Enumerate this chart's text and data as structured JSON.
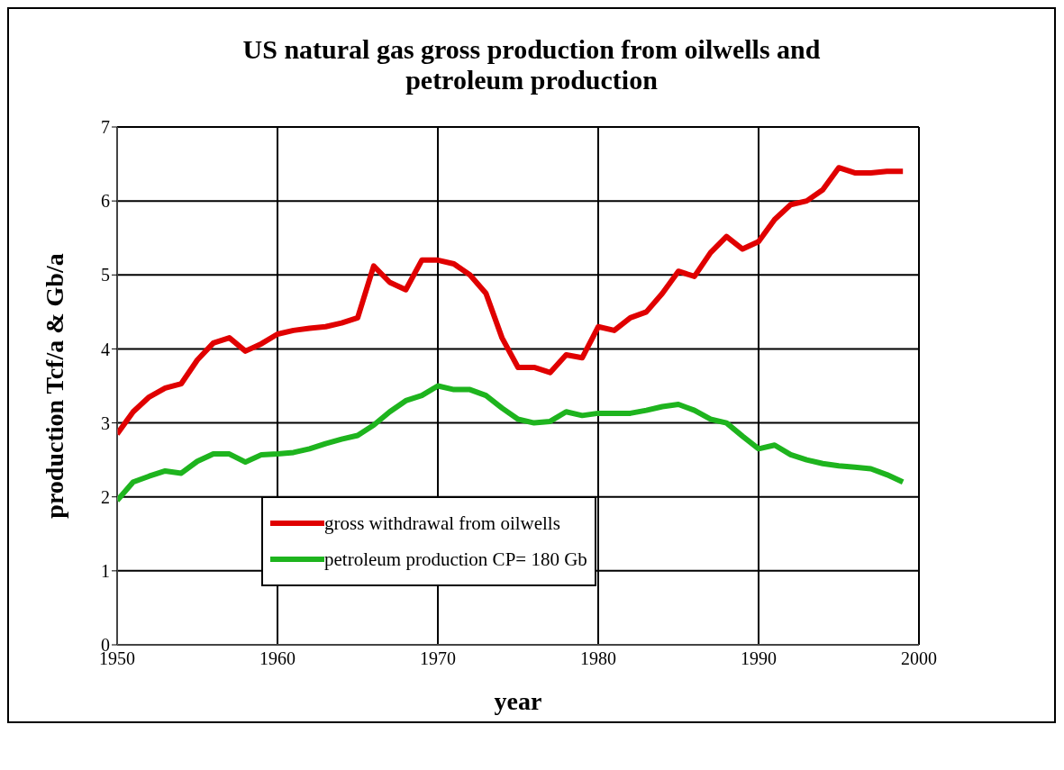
{
  "chart_data": {
    "type": "line",
    "title": "US natural gas gross production from oilwells and petroleum production",
    "xlabel": "year",
    "ylabel": "production  Tcf/a  &  Gb/a",
    "x": [
      1950,
      1951,
      1952,
      1953,
      1954,
      1955,
      1956,
      1957,
      1958,
      1959,
      1960,
      1961,
      1962,
      1963,
      1964,
      1965,
      1966,
      1967,
      1968,
      1969,
      1970,
      1971,
      1972,
      1973,
      1974,
      1975,
      1976,
      1977,
      1978,
      1979,
      1980,
      1981,
      1982,
      1983,
      1984,
      1985,
      1986,
      1987,
      1988,
      1989,
      1990,
      1991,
      1992,
      1993,
      1994,
      1995,
      1996,
      1997,
      1998,
      1999
    ],
    "series": [
      {
        "name": "gross withdrawal from oilwells",
        "color": "#e00000",
        "values": [
          2.85,
          3.15,
          3.35,
          3.47,
          3.53,
          3.85,
          4.08,
          4.15,
          3.97,
          4.07,
          4.2,
          4.25,
          4.28,
          4.3,
          4.35,
          4.42,
          5.12,
          4.9,
          4.8,
          5.2,
          5.2,
          5.15,
          5.0,
          4.75,
          4.15,
          3.75,
          3.75,
          3.68,
          3.92,
          3.88,
          4.3,
          4.25,
          4.42,
          4.5,
          4.75,
          5.05,
          4.98,
          5.3,
          5.52,
          5.35,
          5.45,
          5.75,
          5.95,
          6.0,
          6.15,
          6.45,
          6.38,
          6.38,
          6.4,
          6.4
        ]
      },
      {
        "name": "petroleum production CP= 180 Gb",
        "color": "#1eb41e",
        "values": [
          1.95,
          2.2,
          2.28,
          2.35,
          2.32,
          2.48,
          2.58,
          2.58,
          2.47,
          2.57,
          2.58,
          2.6,
          2.65,
          2.72,
          2.78,
          2.83,
          2.97,
          3.15,
          3.3,
          3.37,
          3.5,
          3.45,
          3.45,
          3.37,
          3.2,
          3.05,
          3.0,
          3.02,
          3.15,
          3.1,
          3.13,
          3.13,
          3.13,
          3.17,
          3.22,
          3.25,
          3.17,
          3.05,
          3.0,
          2.82,
          2.65,
          2.7,
          2.57,
          2.5,
          2.45,
          2.42,
          2.4,
          2.38,
          2.3,
          2.2
        ]
      }
    ],
    "xlim": [
      1950,
      2000
    ],
    "xticks": [
      1950,
      1960,
      1970,
      1980,
      1990,
      2000
    ],
    "ylim": [
      0,
      7
    ],
    "yticks": [
      0,
      1,
      2,
      3,
      4,
      5,
      6,
      7
    ],
    "grid": true,
    "legend": "bottom",
    "marker": "none",
    "line_style": "solid"
  }
}
